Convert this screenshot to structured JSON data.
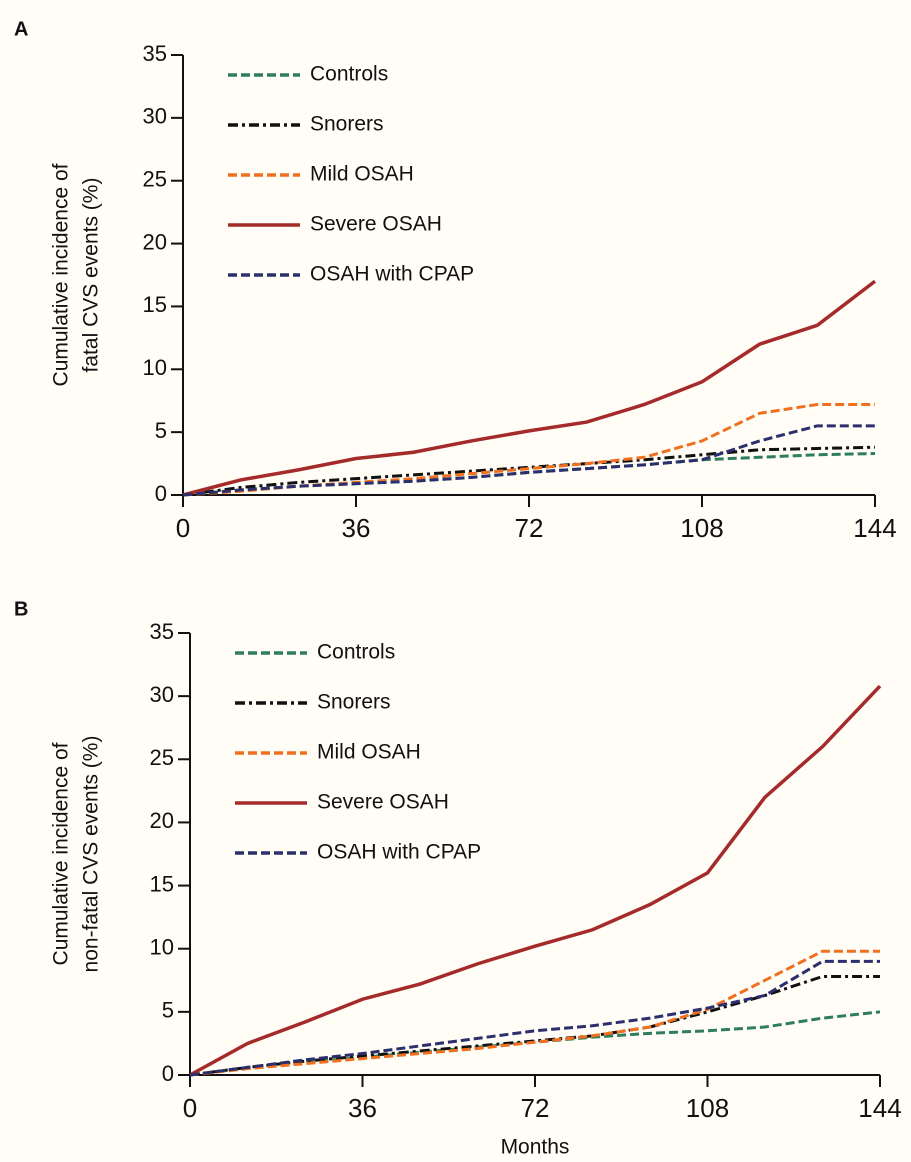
{
  "chart_data": [
    {
      "type": "line",
      "panel_label": "A",
      "ylabel": [
        "Cumulative incidence of",
        "fatal CVS events (%)"
      ],
      "x": [
        0,
        12,
        24,
        36,
        48,
        60,
        72,
        84,
        96,
        108,
        120,
        132,
        144
      ],
      "xlim": [
        0,
        144
      ],
      "xticks": [
        0,
        36,
        72,
        108,
        144
      ],
      "ylim": [
        0,
        35
      ],
      "yticks": [
        0,
        5,
        10,
        15,
        20,
        25,
        30,
        35
      ],
      "legend": "upper left",
      "series": [
        {
          "name": "Controls",
          "color": "#2e7d5b",
          "dash": "dashed",
          "values": [
            0,
            0.4,
            0.7,
            0.9,
            1.1,
            1.4,
            1.8,
            2.1,
            2.4,
            2.8,
            3.0,
            3.2,
            3.3
          ]
        },
        {
          "name": "Snorers",
          "color": "#111111",
          "dash": "dashdot",
          "values": [
            0,
            0.6,
            1.0,
            1.3,
            1.6,
            1.9,
            2.2,
            2.5,
            2.8,
            3.2,
            3.6,
            3.7,
            3.8
          ]
        },
        {
          "name": "Mild OSAH",
          "color": "#f07020",
          "dash": "dashed",
          "values": [
            0,
            0.3,
            0.7,
            1.0,
            1.3,
            1.7,
            2.1,
            2.5,
            3.0,
            4.3,
            6.5,
            7.2,
            7.2
          ]
        },
        {
          "name": "Severe OSAH",
          "color": "#a52a2a",
          "dash": "solid",
          "values": [
            0,
            1.2,
            2.0,
            2.9,
            3.4,
            4.3,
            5.1,
            5.8,
            7.2,
            9.0,
            12.0,
            13.5,
            17.0
          ]
        },
        {
          "name": "OSAH with CPAP",
          "color": "#2b2f6e",
          "dash": "dashed",
          "values": [
            0,
            0.4,
            0.7,
            0.9,
            1.1,
            1.4,
            1.8,
            2.1,
            2.4,
            2.8,
            4.3,
            5.5,
            5.5
          ]
        }
      ]
    },
    {
      "type": "line",
      "panel_label": "B",
      "ylabel": [
        "Cumulative incidence of",
        "non-fatal CVS events (%)"
      ],
      "xlabel": "Months",
      "x": [
        0,
        12,
        24,
        36,
        48,
        60,
        72,
        84,
        96,
        108,
        120,
        132,
        144
      ],
      "xlim": [
        0,
        144
      ],
      "xticks": [
        0,
        36,
        72,
        108,
        144
      ],
      "ylim": [
        0,
        35
      ],
      "yticks": [
        0,
        5,
        10,
        15,
        20,
        25,
        30,
        35
      ],
      "legend": "upper left",
      "series": [
        {
          "name": "Controls",
          "color": "#2e7d5b",
          "dash": "dashed",
          "values": [
            0,
            0.6,
            1.0,
            1.4,
            1.8,
            2.2,
            2.6,
            3.0,
            3.3,
            3.5,
            3.8,
            4.5,
            5.0
          ]
        },
        {
          "name": "Snorers",
          "color": "#111111",
          "dash": "dashdot",
          "values": [
            0,
            0.6,
            1.1,
            1.5,
            1.9,
            2.3,
            2.7,
            3.1,
            3.8,
            5.0,
            6.3,
            7.8,
            7.8
          ]
        },
        {
          "name": "Mild OSAH",
          "color": "#f07020",
          "dash": "dashed",
          "values": [
            0,
            0.5,
            0.9,
            1.3,
            1.7,
            2.1,
            2.6,
            3.1,
            3.8,
            5.2,
            7.5,
            9.8,
            9.8
          ]
        },
        {
          "name": "Severe OSAH",
          "color": "#a52a2a",
          "dash": "solid",
          "values": [
            0,
            2.5,
            4.2,
            6.0,
            7.2,
            8.8,
            10.2,
            11.5,
            13.5,
            16.0,
            22.0,
            26.0,
            30.8
          ]
        },
        {
          "name": "OSAH with CPAP",
          "color": "#2b2f6e",
          "dash": "dashed",
          "values": [
            0,
            0.6,
            1.2,
            1.7,
            2.3,
            2.9,
            3.5,
            3.9,
            4.5,
            5.3,
            6.3,
            9.0,
            9.0
          ]
        }
      ]
    }
  ]
}
